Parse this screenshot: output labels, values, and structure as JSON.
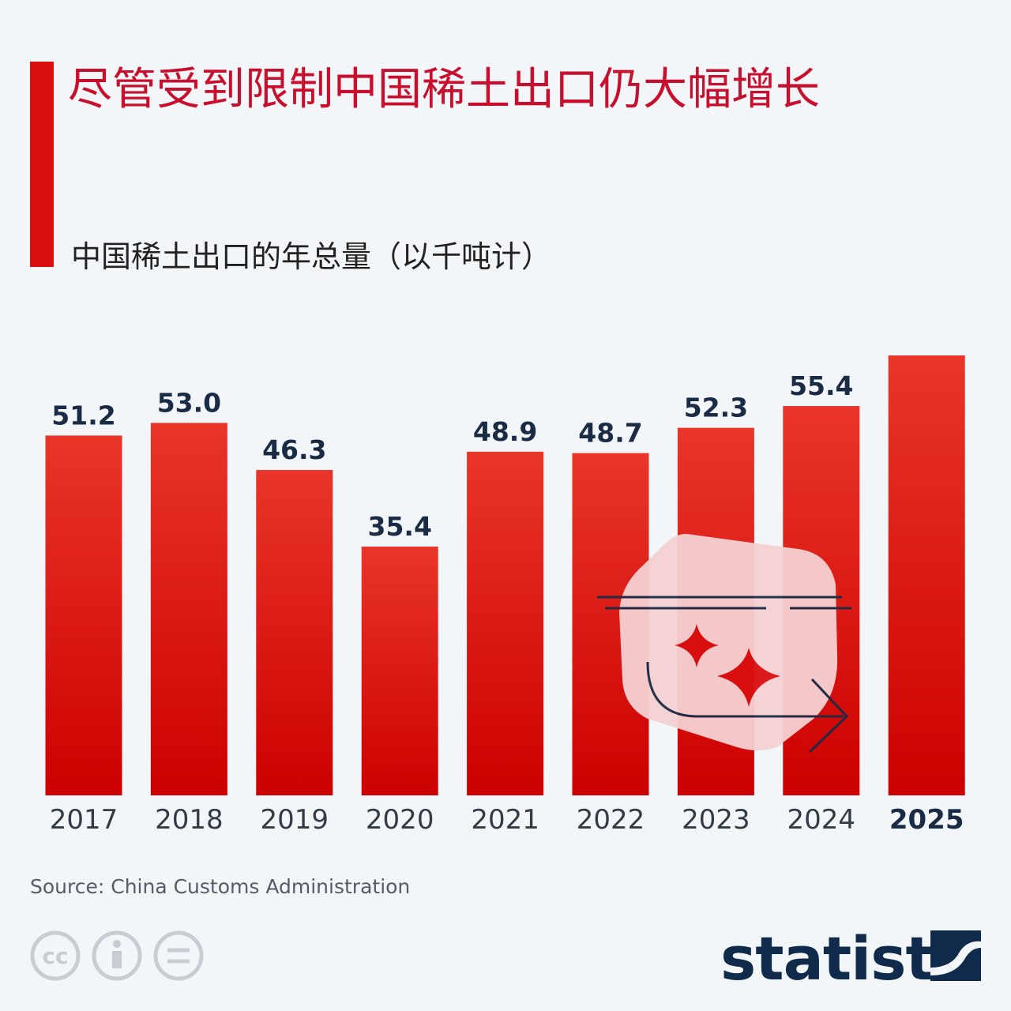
{
  "chart_data": {
    "type": "bar",
    "title": "尽管受到限制中国稀土出口仍大幅增长",
    "subtitle": "中国稀土出口的年总量（以千吨计）",
    "categories": [
      "2017",
      "2018",
      "2019",
      "2020",
      "2021",
      "2022",
      "2023",
      "2024",
      "2025"
    ],
    "values": [
      51.2,
      53.0,
      46.3,
      35.4,
      48.9,
      48.7,
      52.3,
      55.4,
      62.6
    ],
    "value_labels": [
      "51.2",
      "53.0",
      "46.3",
      "35.4",
      "48.9",
      "48.7",
      "52.3",
      "55.4",
      null
    ],
    "color": "#d9140e",
    "source": "Source: China Customs Administration",
    "brand": "statista",
    "license_label": "cc"
  }
}
